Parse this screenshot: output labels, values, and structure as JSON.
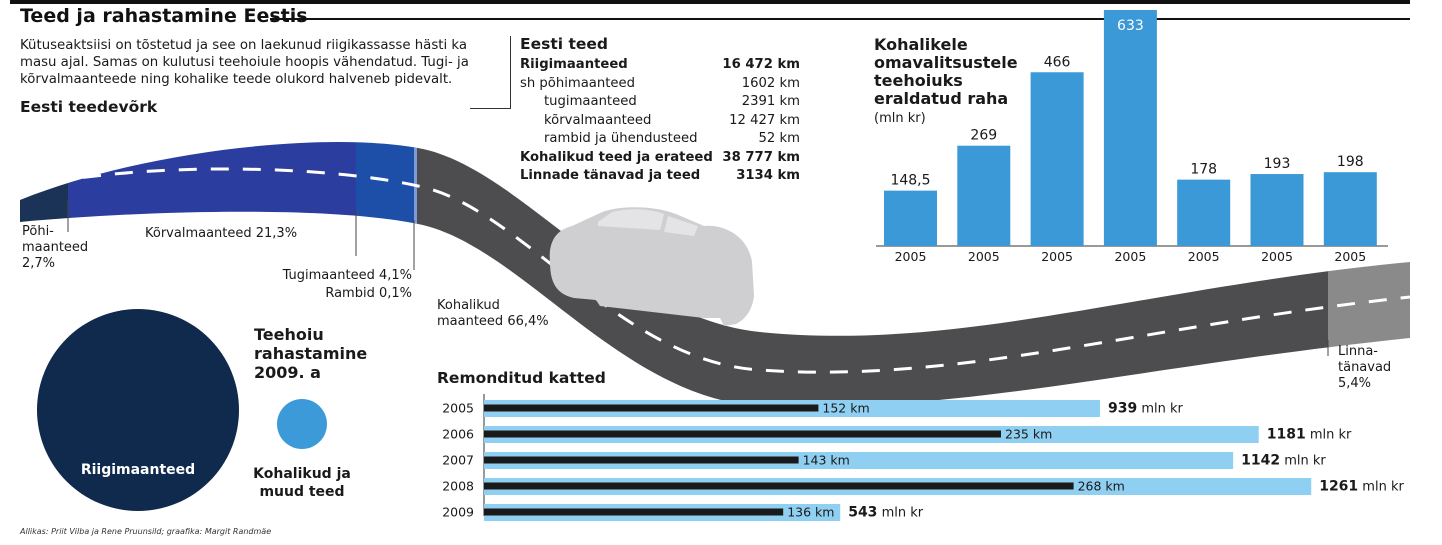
{
  "header": {
    "title": "Teed ja rahastamine Eestis",
    "intro": "Kütuseaktsiisi on tõstetud ja see on laekunud riigikassasse hästi ka masu ajal. Samas on kulutusi teehoiule hoopis vähendatud. Tugi- ja kõrvalmaanteede ning kohalike teede olukord halveneb pidevalt."
  },
  "roads_table": {
    "title": "Eesti teed",
    "rows": [
      {
        "name": "Riigimaanteed",
        "value": "16 472 km",
        "bold": true
      },
      {
        "name": "sh  põhimaanteed",
        "value": "1602 km",
        "bold": false
      },
      {
        "name": "tugimaanteed",
        "value": "2391 km",
        "bold": false
      },
      {
        "name": "kõrvalmaanteed",
        "value": "12 427 km",
        "bold": false
      },
      {
        "name": "rambid ja ühendusteed",
        "value": "52 km",
        "bold": false
      },
      {
        "name": "Kohalikud teed ja erateed",
        "value": "38 777 km",
        "bold": true
      },
      {
        "name": "Linnade tänavad ja teed",
        "value": "3134 km",
        "bold": true
      }
    ]
  },
  "network": {
    "title": "Eesti teedevõrk",
    "colors": {
      "pohi": "#1c3358",
      "korval": "#2b3d9e",
      "tugi": "#1e4fa8",
      "kohalik": "#4d4d4f",
      "linna": "#8a8a8a"
    },
    "labels": {
      "pohi_1": "Põhi-",
      "pohi_2": "maanteed",
      "pohi_3": "2,7%",
      "korval": "Kõrvalmaanteed 21,3%",
      "tugi": "Tugimaanteed 4,1%",
      "rambid": "Rambid 0,1%",
      "kohalik_1": "Kohalikud",
      "kohalik_2": "maanteed 66,4%",
      "linna_1": "Linna-",
      "linna_2": "tänavad",
      "linna_3": "5,4%"
    }
  },
  "funding_circles": {
    "title_1": "Teehoiu",
    "title_2": "rahastamine",
    "title_3": "2009. a",
    "big_label": "Riigimaanteed",
    "small_label_1": "Kohalikud ja",
    "small_label_2": "muud teed",
    "big_color": "#0f2a4c",
    "small_color": "#3c9ad8"
  },
  "chart_data": [
    {
      "type": "bar",
      "title": "Kohalikele omavalitsustele teehoiuks eraldatud raha",
      "title_lines": [
        "Kohalikele",
        "omavalitsustele",
        "teehoiuks",
        "eraldatud raha"
      ],
      "unit": "(mln kr)",
      "categories": [
        "2005",
        "2005",
        "2005",
        "2005",
        "2005",
        "2005",
        "2005"
      ],
      "values": [
        148.5,
        269,
        466,
        633,
        178,
        193,
        198
      ],
      "value_labels": [
        "148,5",
        "269",
        "466",
        "633",
        "178",
        "193",
        "198"
      ],
      "bar_color": "#3a99d6",
      "ylim": [
        0,
        633
      ]
    },
    {
      "type": "bar",
      "orientation": "horizontal",
      "title": "Remonditud katted",
      "categories": [
        "2005",
        "2006",
        "2007",
        "2008",
        "2009"
      ],
      "series": [
        {
          "values": [
            939,
            1181,
            1142,
            1261,
            543
          ],
          "value_labels": [
            "939",
            "1181",
            "1142",
            "1261",
            "543"
          ],
          "unit": "mln kr",
          "color": "#8fd0f2"
        },
        {
          "values": [
            152,
            235,
            143,
            268,
            136
          ],
          "value_labels": [
            "152 km",
            "235 km",
            "143 km",
            "268 km",
            "136 km"
          ],
          "color": "#1a1a1a"
        }
      ]
    }
  ],
  "source": "Allikas: Priit Vilba ja Rene Pruunsild; graafika: Margit Randmäe"
}
